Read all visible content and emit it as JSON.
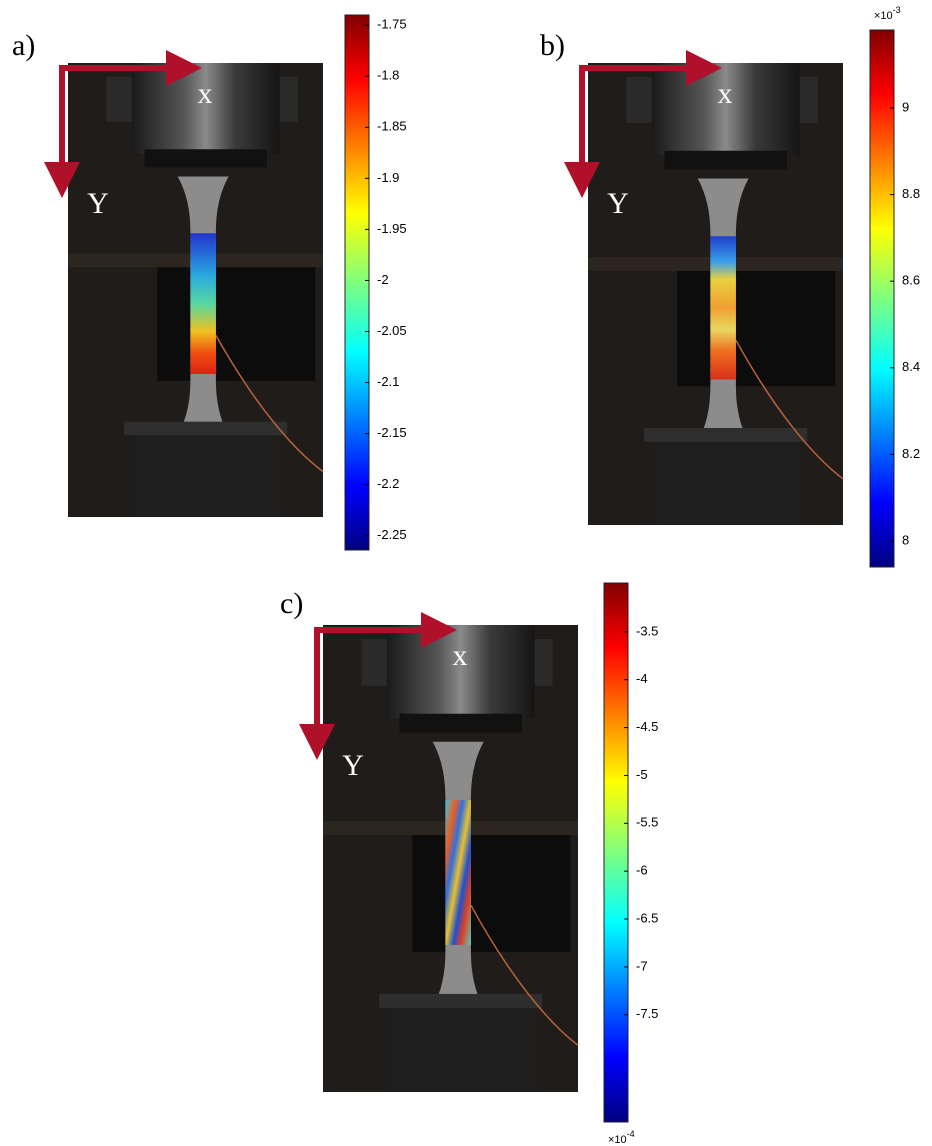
{
  "panels": [
    {
      "label": "a)",
      "x_label": "x",
      "y_label": "Y",
      "colorbar": {
        "lim": [
          -2.264,
          -1.74
        ],
        "ticks": [
          -1.75,
          -1.8,
          -1.85,
          -1.9,
          -1.95,
          -2,
          -2.05,
          -2.1,
          -2.15,
          -2.2,
          -2.25
        ]
      }
    },
    {
      "label": "b)",
      "x_label": "x",
      "y_label": "Y",
      "colorbar": {
        "lim": [
          7.94,
          9.18
        ],
        "ticks": [
          8,
          8.2,
          8.4,
          8.6,
          8.8,
          9
        ],
        "multiplier": {
          "base": "×10",
          "exponent": "-3"
        }
      }
    },
    {
      "label": "c)",
      "x_label": "x",
      "y_label": "Y",
      "colorbar": {
        "lim": [
          -8.62,
          -2.99
        ],
        "ticks": [
          -3.5,
          -4,
          -4.5,
          -5,
          -5.5,
          -6,
          -6.5,
          -7,
          -7.5
        ],
        "multiplier": {
          "base": "×10",
          "exponent": "-4"
        }
      }
    }
  ]
}
